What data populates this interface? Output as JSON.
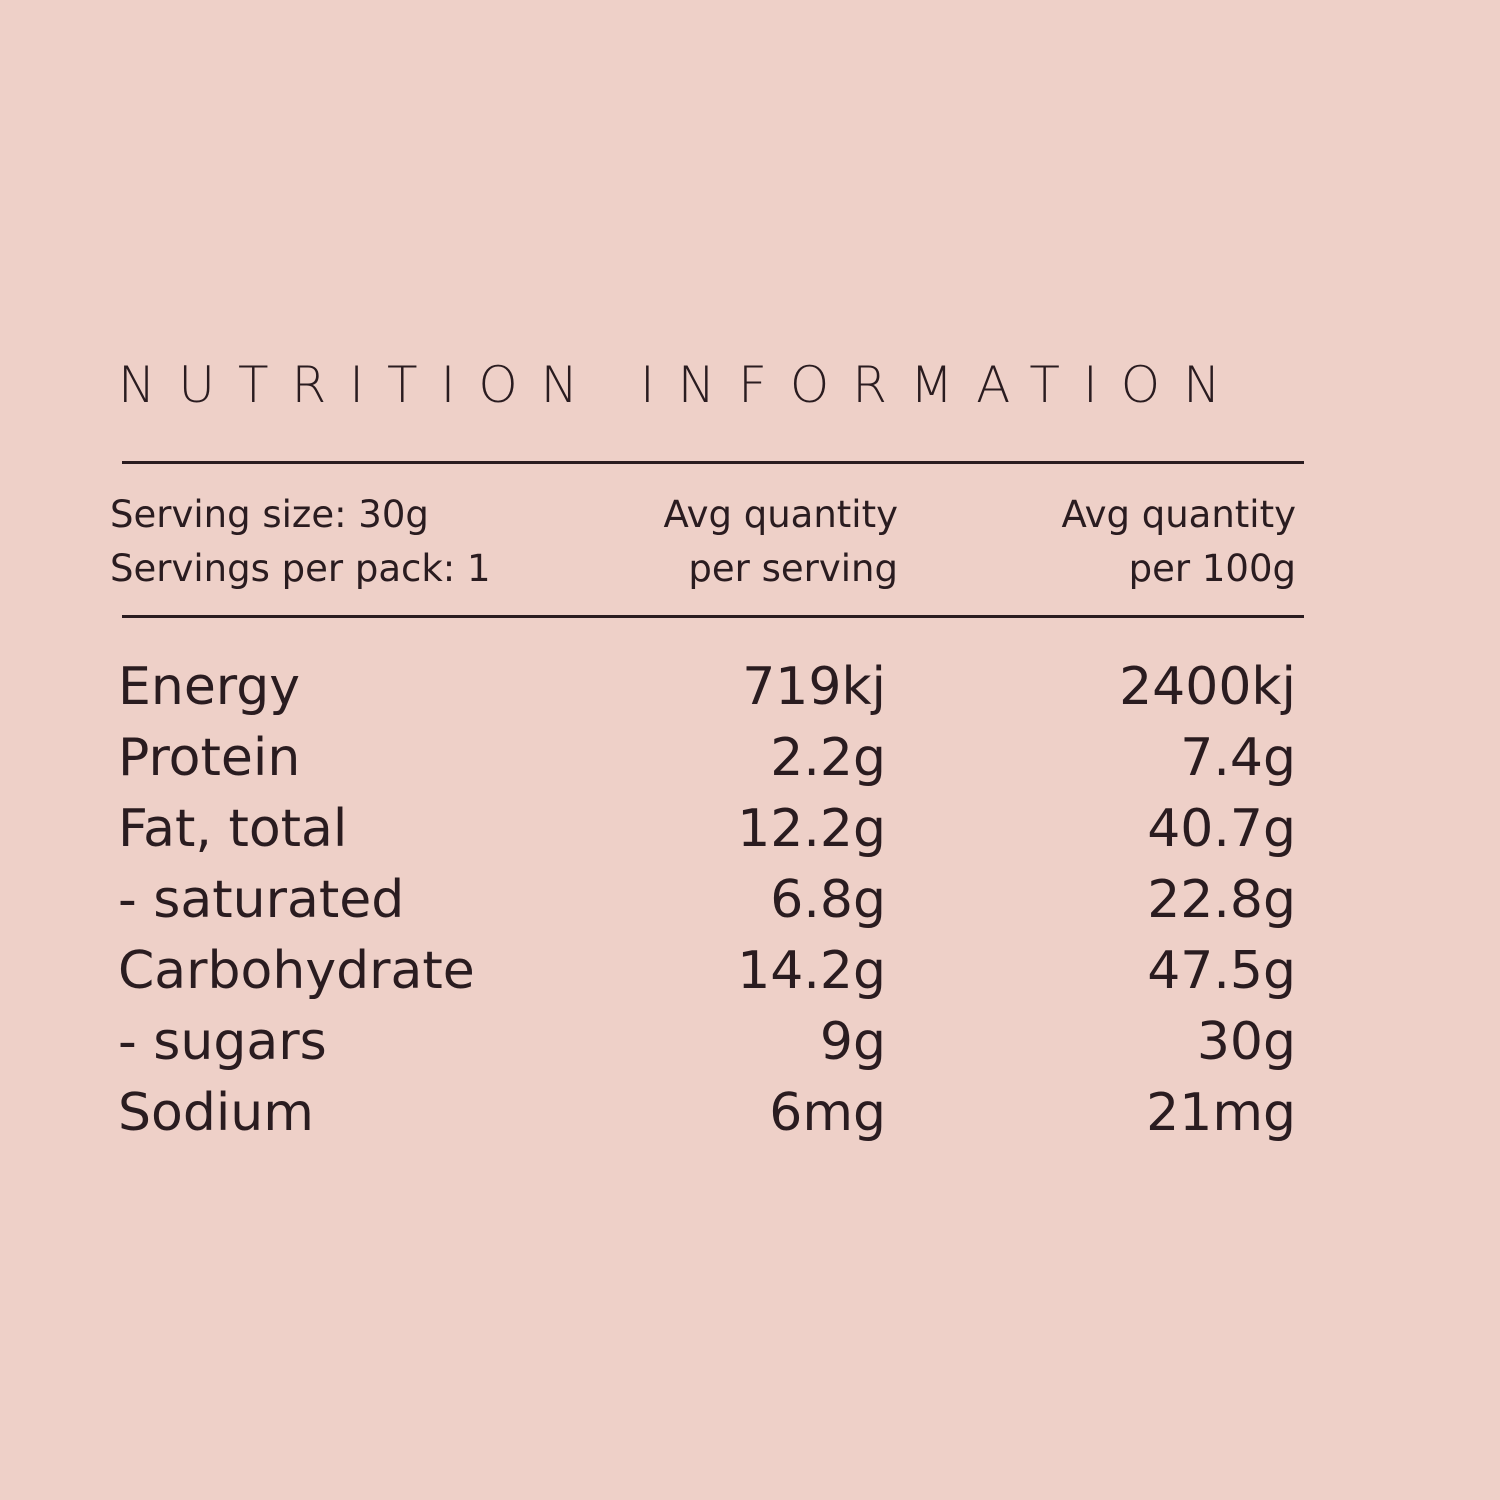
{
  "title": "NUTRITION INFORMATION",
  "header": {
    "serving_size": "Serving size: 30g",
    "servings_per_pack": "Servings per pack: 1",
    "col1": [
      "Avg quantity",
      "per serving"
    ],
    "col2": [
      "Avg quantity",
      "per 100g"
    ]
  },
  "table": {
    "rows": [
      [
        "Energy",
        "719kj",
        "2400kj"
      ],
      [
        "Protein",
        "2.2g",
        "7.4g"
      ],
      [
        "Fat, total",
        "12.2g",
        "40.7g"
      ],
      [
        "- saturated",
        "6.8g",
        "22.8g"
      ],
      [
        "Carbohydrate",
        "14.2g",
        "47.5g"
      ],
      [
        "- sugars",
        "9g",
        "30g"
      ],
      [
        "Sodium",
        "6mg",
        "21mg"
      ]
    ]
  }
}
